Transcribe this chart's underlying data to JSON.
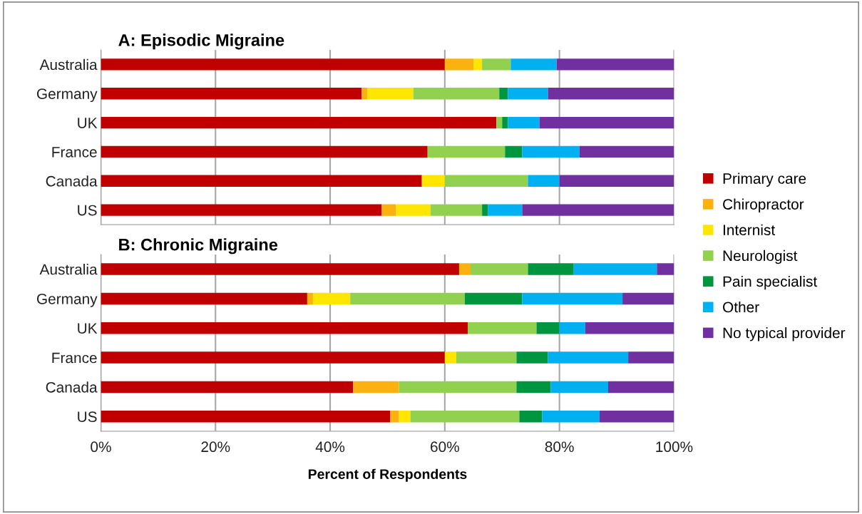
{
  "chart_data": [
    {
      "type": "bar",
      "orientation": "horizontal",
      "stacked": true,
      "title": "A: Episodic Migraine",
      "categories": [
        "Australia",
        "Germany",
        "UK",
        "France",
        "Canada",
        "US"
      ],
      "series": [
        {
          "name": "Primary care",
          "color": "#c00000",
          "values": [
            60,
            45.5,
            69,
            57,
            56,
            49
          ]
        },
        {
          "name": "Chiropractor",
          "color": "#fbb20f",
          "values": [
            5,
            1,
            0,
            0,
            0,
            2.5
          ]
        },
        {
          "name": "Internist",
          "color": "#ffe600",
          "values": [
            1.5,
            8,
            0,
            0,
            4,
            6
          ]
        },
        {
          "name": "Neurologist",
          "color": "#92d050",
          "values": [
            5,
            15,
            1,
            13.5,
            14.5,
            9
          ]
        },
        {
          "name": "Pain specialist",
          "color": "#00963f",
          "values": [
            0,
            1.5,
            1,
            3,
            0,
            1
          ]
        },
        {
          "name": "Other",
          "color": "#00b0f0",
          "values": [
            8,
            7,
            5.5,
            10,
            5.5,
            6
          ]
        },
        {
          "name": "No typical provider",
          "color": "#7030a0",
          "values": [
            20.5,
            22,
            23.5,
            16.5,
            20,
            26.5
          ]
        }
      ],
      "xlim": [
        0,
        100
      ],
      "xticks": [
        {
          "value": 0,
          "label": null
        },
        {
          "value": 20,
          "label": null
        },
        {
          "value": 40,
          "label": null
        },
        {
          "value": 60,
          "label": null
        },
        {
          "value": 80,
          "label": null
        },
        {
          "value": 100,
          "label": null
        }
      ],
      "tick_labels": "y",
      "grid": "x",
      "legend": "right"
    },
    {
      "type": "bar",
      "orientation": "horizontal",
      "stacked": true,
      "title": "B: Chronic Migraine",
      "categories": [
        "Australia",
        "Germany",
        "UK",
        "France",
        "Canada",
        "US"
      ],
      "series": [
        {
          "color": "#c00000",
          "values": [
            62.5,
            36,
            64,
            60,
            44,
            50.5
          ]
        },
        {
          "color": "#fbb20f",
          "values": [
            2,
            1,
            0,
            0,
            8,
            1.5
          ]
        },
        {
          "color": "#ffe600",
          "values": [
            0,
            6.5,
            0,
            2,
            0,
            2
          ]
        },
        {
          "color": "#92d050",
          "values": [
            10,
            20,
            12,
            10.5,
            20.5,
            19
          ]
        },
        {
          "color": "#00963f",
          "values": [
            8,
            10,
            4,
            5.5,
            6,
            4
          ]
        },
        {
          "color": "#00b0f0",
          "values": [
            14.5,
            17.5,
            4.5,
            14,
            10,
            10
          ]
        },
        {
          "color": "#7030a0",
          "values": [
            3,
            9,
            15.5,
            8,
            11.5,
            13
          ]
        }
      ],
      "xlim": [
        0,
        100
      ],
      "xticks": [
        {
          "value": 0,
          "label": "0%"
        },
        {
          "value": 20,
          "label": "20%"
        },
        {
          "value": 40,
          "label": "40%"
        },
        {
          "value": 60,
          "label": "60%"
        },
        {
          "value": 80,
          "label": "80%"
        },
        {
          "value": 100,
          "label": "100%"
        }
      ],
      "xlabel": "Percent of Respondents",
      "grid": "x"
    }
  ]
}
